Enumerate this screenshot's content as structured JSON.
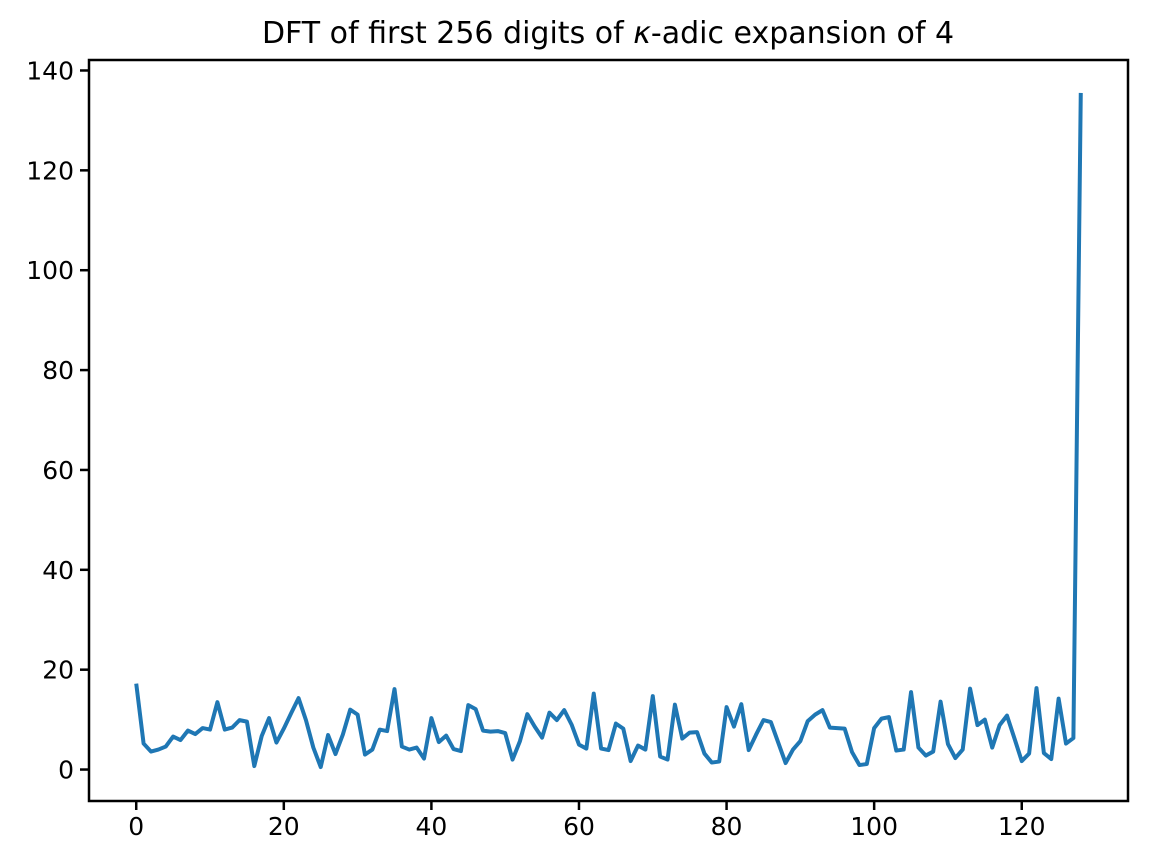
{
  "figure": {
    "title_parts": {
      "prefix": "DFT of first 256 digits of ",
      "kappa": "κ",
      "suffix": "-adic expansion of 4"
    }
  },
  "chart_data": {
    "type": "line",
    "title": "DFT of first 256 digits of κ-adic expansion of 4",
    "xlabel": "",
    "ylabel": "",
    "legend": null,
    "grid": false,
    "line_color": "#1f77b4",
    "xlim": [
      -6.4,
      134.4
    ],
    "ylim": [
      -6.3,
      142.1
    ],
    "xticks": [
      0,
      20,
      40,
      60,
      80,
      100,
      120
    ],
    "yticks": [
      0,
      20,
      40,
      60,
      80,
      100,
      120,
      140
    ],
    "x": [
      0,
      1,
      2,
      3,
      4,
      5,
      6,
      7,
      8,
      9,
      10,
      11,
      12,
      13,
      14,
      15,
      16,
      17,
      18,
      19,
      20,
      21,
      22,
      23,
      24,
      25,
      26,
      27,
      28,
      29,
      30,
      31,
      32,
      33,
      34,
      35,
      36,
      37,
      38,
      39,
      40,
      41,
      42,
      43,
      44,
      45,
      46,
      47,
      48,
      49,
      50,
      51,
      52,
      53,
      54,
      55,
      56,
      57,
      58,
      59,
      60,
      61,
      62,
      63,
      64,
      65,
      66,
      67,
      68,
      69,
      70,
      71,
      72,
      73,
      74,
      75,
      76,
      77,
      78,
      79,
      80,
      81,
      82,
      83,
      84,
      85,
      86,
      87,
      88,
      89,
      90,
      91,
      92,
      93,
      94,
      95,
      96,
      97,
      98,
      99,
      100,
      101,
      102,
      103,
      104,
      105,
      106,
      107,
      108,
      109,
      110,
      111,
      112,
      113,
      114,
      115,
      116,
      117,
      118,
      119,
      120,
      121,
      122,
      123,
      124,
      125,
      126,
      127,
      128
    ],
    "values": [
      17.2,
      5.2,
      3.6,
      4.0,
      4.6,
      6.6,
      5.9,
      7.8,
      7.1,
      8.3,
      8.0,
      13.5,
      8.0,
      8.4,
      9.9,
      9.6,
      0.7,
      6.7,
      10.3,
      5.4,
      8.2,
      11.3,
      14.3,
      9.9,
      4.4,
      0.5,
      6.9,
      3.1,
      7.0,
      12.0,
      11.0,
      3.0,
      4.0,
      8.0,
      7.7,
      16.1,
      4.6,
      4.0,
      4.4,
      2.2,
      10.3,
      5.5,
      6.8,
      4.1,
      3.7,
      12.9,
      12.1,
      7.8,
      7.6,
      7.7,
      7.3,
      2.0,
      5.7,
      11.1,
      8.6,
      6.4,
      11.4,
      9.9,
      11.9,
      9.0,
      5.0,
      4.2,
      15.2,
      4.2,
      3.9,
      9.2,
      8.2,
      1.7,
      4.8,
      4.0,
      14.7,
      2.6,
      2.0,
      13.0,
      6.2,
      7.4,
      7.5,
      3.2,
      1.4,
      1.6,
      12.5,
      8.6,
      13.1,
      3.9,
      7.0,
      9.9,
      9.5,
      5.4,
      1.3,
      4.0,
      5.7,
      9.7,
      11.0,
      11.9,
      8.4,
      8.3,
      8.2,
      3.5,
      0.9,
      1.1,
      8.3,
      10.2,
      10.5,
      3.8,
      4.0,
      15.5,
      4.4,
      2.8,
      3.6,
      13.6,
      5.1,
      2.3,
      4.0,
      16.2,
      8.9,
      10.0,
      4.4,
      8.9,
      10.8,
      6.3,
      1.7,
      3.2,
      16.3,
      3.3,
      2.1,
      14.2,
      5.2,
      6.3,
      135.5
    ]
  }
}
